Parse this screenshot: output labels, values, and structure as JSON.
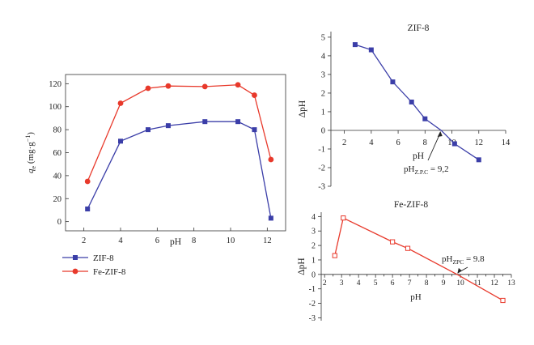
{
  "chart_data": [
    {
      "type": "line",
      "xlabel": "pH",
      "ylabel_main": "q",
      "ylabel_sub": "e",
      "ylabel_unit": " (mg·g",
      "ylabel_sup": "−1",
      "ylabel_close": ")",
      "xlim": [
        1,
        13
      ],
      "ylim": [
        -8,
        128
      ],
      "xticks": [
        2,
        4,
        6,
        8,
        10,
        12
      ],
      "yticks": [
        0,
        20,
        40,
        60,
        80,
        100,
        120
      ],
      "legend_position": "bottom-left-outside",
      "series": [
        {
          "name": "ZIF-8",
          "color": "#3b3ea8",
          "marker": "square",
          "points": [
            [
              2.2,
              11
            ],
            [
              4.0,
              70
            ],
            [
              5.5,
              80
            ],
            [
              6.6,
              83.5
            ],
            [
              8.6,
              87
            ],
            [
              10.4,
              87
            ],
            [
              11.3,
              80
            ],
            [
              12.2,
              3
            ]
          ]
        },
        {
          "name": "Fe-ZIF-8",
          "color": "#e8392b",
          "marker": "circle",
          "points": [
            [
              2.2,
              35
            ],
            [
              4.0,
              103
            ],
            [
              5.5,
              116
            ],
            [
              6.6,
              118
            ],
            [
              8.6,
              117.5
            ],
            [
              10.4,
              119
            ],
            [
              11.3,
              110
            ],
            [
              12.2,
              54
            ]
          ]
        }
      ]
    },
    {
      "type": "line",
      "title": "ZIF-8",
      "xlabel": "pH",
      "ylabel": "ΔpH",
      "xlim": [
        1,
        14
      ],
      "ylim": [
        -3,
        5.3
      ],
      "xticks": [
        2,
        4,
        6,
        8,
        10,
        12,
        14
      ],
      "yticks": [
        5,
        4,
        3,
        2,
        1,
        0,
        -1,
        -2,
        -3
      ],
      "annotation": {
        "prefix": "pH",
        "sub": "Z.P.C",
        "suffix": " = 9,2",
        "point": [
          9.2,
          0
        ]
      },
      "series": [
        {
          "name": "ZIF-8",
          "color": "#3b3ea8",
          "marker": "square",
          "points": [
            [
              2.8,
              4.6
            ],
            [
              4.0,
              4.32
            ],
            [
              5.6,
              2.6
            ],
            [
              7.0,
              1.52
            ],
            [
              8.0,
              0.62
            ],
            [
              9.2,
              0
            ],
            [
              10.2,
              -0.72
            ],
            [
              12.0,
              -1.58
            ]
          ]
        }
      ]
    },
    {
      "type": "line",
      "title": "Fe-ZIF-8",
      "xlabel": "pH",
      "ylabel": "ΔpH",
      "xlim": [
        1.8,
        13
      ],
      "ylim": [
        -3.2,
        4.3
      ],
      "xticks": [
        2,
        2.5,
        3,
        3.5,
        4,
        4.5,
        5,
        5.5,
        6,
        6.5,
        7,
        7.5,
        8,
        8.5,
        9,
        9.5,
        10,
        10.5,
        11,
        11.5,
        12,
        12.5,
        13
      ],
      "xtick_labels": [
        "2",
        "",
        "3",
        "",
        "4",
        "",
        "5",
        "",
        "6",
        "",
        "7",
        "",
        "8",
        "",
        "9",
        "",
        "10",
        "",
        "11",
        "",
        "12",
        "",
        "13"
      ],
      "yticks": [
        4,
        3,
        2,
        1,
        0,
        -1,
        -2,
        -3
      ],
      "annotation": {
        "prefix": "pH",
        "sub": "ZPC",
        "suffix": " = 9.8",
        "point": [
          9.8,
          0
        ]
      },
      "series": [
        {
          "name": "Fe-ZIF-8",
          "color": "#e8392b",
          "marker": "open-square",
          "points": [
            [
              2.6,
              1.3
            ],
            [
              3.1,
              3.9
            ],
            [
              6.0,
              2.25
            ],
            [
              6.9,
              1.8
            ],
            [
              9.8,
              0
            ],
            [
              12.5,
              -1.8
            ]
          ]
        }
      ]
    }
  ]
}
